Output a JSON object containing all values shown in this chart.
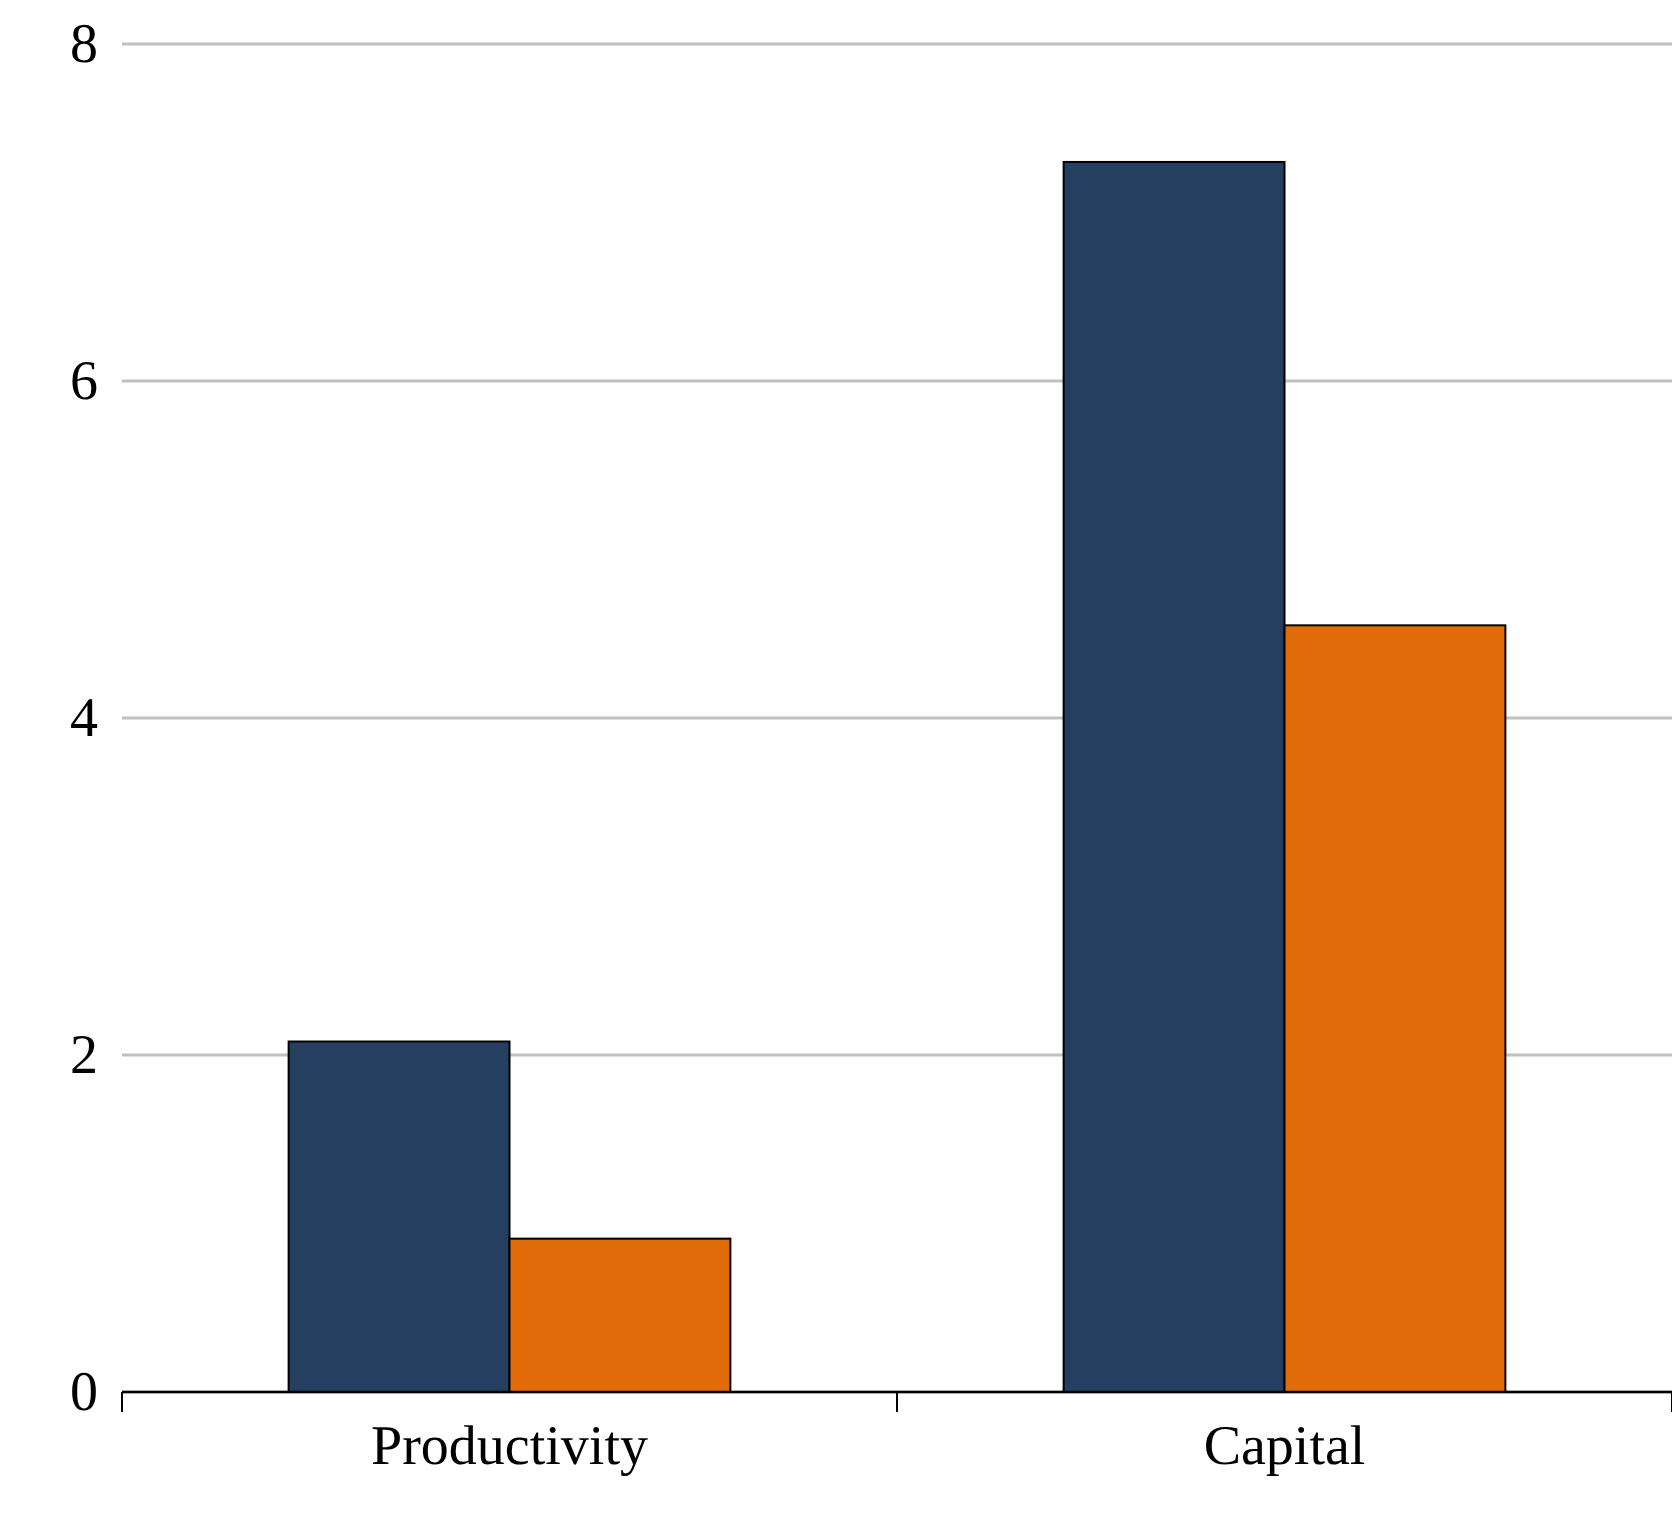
{
  "chart_data": {
    "type": "bar",
    "categories": [
      "Productivity",
      "Capital"
    ],
    "series": [
      {
        "color": "#253f60",
        "values": [
          2.08,
          7.3
        ]
      },
      {
        "color": "#e36c0a",
        "values": [
          0.91,
          4.55
        ]
      }
    ],
    "ylim": [
      0,
      8
    ],
    "yticks": [
      0,
      2,
      4,
      6,
      8
    ],
    "grid": "y"
  }
}
